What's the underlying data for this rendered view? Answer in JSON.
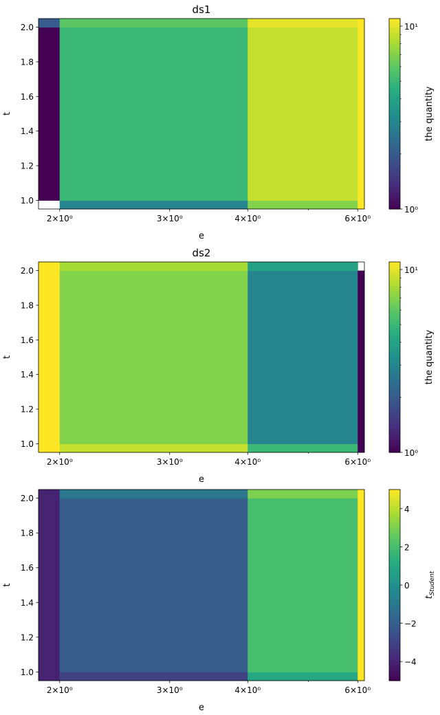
{
  "chart_data": [
    {
      "type": "heatmap",
      "title": "ds1",
      "xlabel": "e",
      "ylabel": "t",
      "x_scale": "log",
      "xlim": [
        1.85,
        6.15
      ],
      "ylim": [
        0.95,
        2.05
      ],
      "x_ticks": [
        {
          "v": 2,
          "label": "2×10⁰"
        },
        {
          "v": 3,
          "label": "3×10⁰"
        },
        {
          "v": 4,
          "label": "4×10⁰"
        },
        {
          "v": 6,
          "label": "6×10⁰"
        }
      ],
      "x_minor_ticks": [
        5
      ],
      "y_ticks": [
        1.0,
        1.2,
        1.4,
        1.6,
        1.8,
        2.0
      ],
      "y_tick_labels": [
        "1.0",
        "1.2",
        "1.4",
        "1.6",
        "1.8",
        "2.0"
      ],
      "colorbar": {
        "label": "the quantity",
        "scale": "log",
        "range": [
          1,
          11
        ],
        "ticks": [
          {
            "v": 1,
            "label": "10⁰"
          },
          {
            "v": 10,
            "label": "10¹"
          }
        ],
        "minor_ticks": [
          2,
          3,
          4,
          5,
          6,
          7,
          8,
          9
        ]
      },
      "colormap": "viridis",
      "x_edges": [
        1.85,
        2.0,
        4.0,
        6.0,
        6.15
      ],
      "y_edges": [
        0.95,
        1.0,
        2.0,
        2.05
      ],
      "values": [
        [
          null,
          3,
          7,
          11
        ],
        [
          1,
          5,
          9,
          11
        ],
        [
          2,
          6,
          10,
          11
        ]
      ]
    },
    {
      "type": "heatmap",
      "title": "ds2",
      "xlabel": "e",
      "ylabel": "t",
      "x_scale": "log",
      "xlim": [
        1.85,
        6.15
      ],
      "ylim": [
        0.95,
        2.05
      ],
      "x_ticks": [
        {
          "v": 2,
          "label": "2×10⁰"
        },
        {
          "v": 3,
          "label": "3×10⁰"
        },
        {
          "v": 4,
          "label": "4×10⁰"
        },
        {
          "v": 6,
          "label": "6×10⁰"
        }
      ],
      "x_minor_ticks": [
        5
      ],
      "y_ticks": [
        1.0,
        1.2,
        1.4,
        1.6,
        1.8,
        2.0
      ],
      "y_tick_labels": [
        "1.0",
        "1.2",
        "1.4",
        "1.6",
        "1.8",
        "2.0"
      ],
      "colorbar": {
        "label": "the quantity",
        "scale": "log",
        "range": [
          1,
          11
        ],
        "ticks": [
          {
            "v": 1,
            "label": "10⁰"
          },
          {
            "v": 10,
            "label": "10¹"
          }
        ],
        "minor_ticks": [
          2,
          3,
          4,
          5,
          6,
          7,
          8,
          9
        ]
      },
      "colormap": "viridis",
      "x_edges": [
        1.85,
        2.0,
        4.0,
        6.0,
        6.15
      ],
      "y_edges": [
        0.95,
        1.0,
        2.0,
        2.05
      ],
      "values": [
        [
          11,
          9,
          5,
          1
        ],
        [
          11,
          7,
          3,
          1
        ],
        [
          11,
          8,
          4,
          null
        ]
      ]
    },
    {
      "type": "heatmap",
      "title": "",
      "xlabel": "e",
      "ylabel": "t",
      "x_scale": "log",
      "xlim": [
        1.85,
        6.15
      ],
      "ylim": [
        0.95,
        2.05
      ],
      "x_ticks": [
        {
          "v": 2,
          "label": "2×10⁰"
        },
        {
          "v": 3,
          "label": "3×10⁰"
        },
        {
          "v": 4,
          "label": "4×10⁰"
        },
        {
          "v": 6,
          "label": "6×10⁰"
        }
      ],
      "x_minor_ticks": [
        5
      ],
      "y_ticks": [
        1.0,
        1.2,
        1.4,
        1.6,
        1.8,
        2.0
      ],
      "y_tick_labels": [
        "1.0",
        "1.2",
        "1.4",
        "1.6",
        "1.8",
        "2.0"
      ],
      "colorbar": {
        "label": "t",
        "label_subscript": "Student",
        "scale": "linear",
        "range": [
          -5,
          5
        ],
        "ticks": [
          {
            "v": -4,
            "label": "−4"
          },
          {
            "v": -2,
            "label": "−2"
          },
          {
            "v": 0,
            "label": "0"
          },
          {
            "v": 2,
            "label": "2"
          },
          {
            "v": 4,
            "label": "4"
          }
        ],
        "minor_ticks": []
      },
      "colormap": "viridis",
      "x_edges": [
        1.85,
        2.0,
        4.0,
        6.0,
        6.15
      ],
      "y_edges": [
        0.95,
        1.0,
        2.0,
        2.05
      ],
      "values": [
        [
          -4,
          -3,
          1,
          5
        ],
        [
          -4,
          -2,
          2,
          5
        ],
        [
          -4,
          -1,
          3,
          5
        ]
      ]
    }
  ]
}
